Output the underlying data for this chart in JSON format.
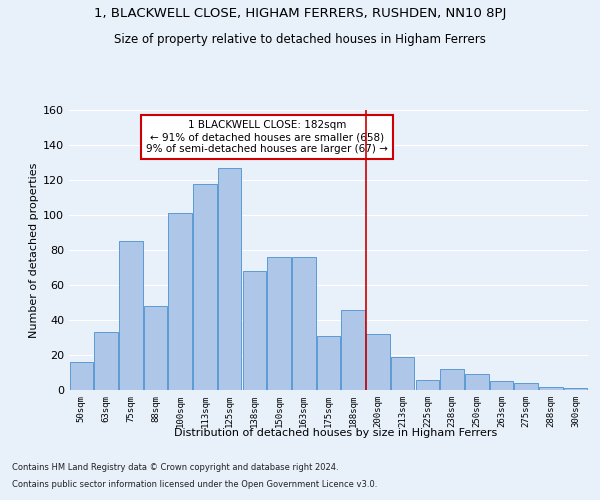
{
  "title1": "1, BLACKWELL CLOSE, HIGHAM FERRERS, RUSHDEN, NN10 8PJ",
  "title2": "Size of property relative to detached houses in Higham Ferrers",
  "xlabel": "Distribution of detached houses by size in Higham Ferrers",
  "ylabel": "Number of detached properties",
  "categories": [
    "50sqm",
    "63sqm",
    "75sqm",
    "88sqm",
    "100sqm",
    "113sqm",
    "125sqm",
    "138sqm",
    "150sqm",
    "163sqm",
    "175sqm",
    "188sqm",
    "200sqm",
    "213sqm",
    "225sqm",
    "238sqm",
    "250sqm",
    "263sqm",
    "275sqm",
    "288sqm",
    "300sqm"
  ],
  "values": [
    16,
    33,
    85,
    48,
    101,
    118,
    127,
    68,
    76,
    76,
    31,
    46,
    32,
    19,
    6,
    12,
    9,
    5,
    4,
    2,
    1
  ],
  "bar_color": "#aec6e8",
  "bar_edge_color": "#5b9bd5",
  "annotation_line0": "1 BLACKWELL CLOSE: 182sqm",
  "annotation_line1": "← 91% of detached houses are smaller (658)",
  "annotation_line2": "9% of semi-detached houses are larger (67) →",
  "ylim": [
    0,
    160
  ],
  "yticks": [
    0,
    20,
    40,
    60,
    80,
    100,
    120,
    140,
    160
  ],
  "footer1": "Contains HM Land Registry data © Crown copyright and database right 2024.",
  "footer2": "Contains public sector information licensed under the Open Government Licence v3.0.",
  "background_color": "#e8f0fa",
  "grid_color": "#ffffff",
  "annotation_box_color": "#cc0000",
  "red_line_index": 11.5
}
